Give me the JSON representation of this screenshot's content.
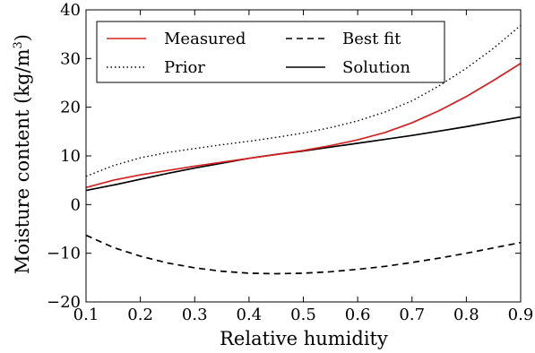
{
  "chart_data": {
    "type": "line",
    "title": "",
    "xlabel": "Relative humidity",
    "ylabel": {
      "main": "Moisture content (kg/m",
      "sup": "3",
      "close": ")"
    },
    "xlim": [
      0.1,
      0.9
    ],
    "ylim": [
      -20,
      40
    ],
    "xticks": [
      0.1,
      0.2,
      0.3,
      0.4,
      0.5,
      0.6,
      0.7,
      0.8,
      0.9
    ],
    "xtick_labels": [
      "0.1",
      "0.2",
      "0.3",
      "0.4",
      "0.5",
      "0.6",
      "0.7",
      "0.8",
      "0.9"
    ],
    "yticks": [
      -20,
      -10,
      0,
      10,
      20,
      30,
      40
    ],
    "ytick_labels": [
      "−20",
      "−10",
      "0",
      "10",
      "20",
      "30",
      "40"
    ],
    "grid": false,
    "legend_position": "top-left",
    "x": [
      0.1,
      0.15,
      0.2,
      0.25,
      0.3,
      0.35,
      0.4,
      0.45,
      0.5,
      0.55,
      0.6,
      0.65,
      0.7,
      0.75,
      0.8,
      0.85,
      0.9
    ],
    "series": [
      {
        "name": "Measured",
        "color": "#d62020",
        "dash": "solid",
        "values": [
          3.5,
          5.0,
          6.1,
          7.0,
          7.9,
          8.7,
          9.5,
          10.3,
          11.1,
          12.1,
          13.3,
          14.8,
          16.8,
          19.3,
          22.2,
          25.5,
          29.0
        ]
      },
      {
        "name": "Best fit",
        "color": "#000000",
        "dash": "dashed",
        "values": [
          -6.3,
          -8.8,
          -10.6,
          -12.0,
          -13.0,
          -13.7,
          -14.1,
          -14.2,
          -14.1,
          -13.8,
          -13.3,
          -12.7,
          -11.9,
          -11.0,
          -10.0,
          -8.9,
          -7.8
        ]
      },
      {
        "name": "Prior",
        "color": "#000000",
        "dash": "dotted",
        "values": [
          5.8,
          8.0,
          9.6,
          10.7,
          11.5,
          12.3,
          13.0,
          13.8,
          14.7,
          15.8,
          17.2,
          19.0,
          21.3,
          24.4,
          28.0,
          32.1,
          36.8
        ]
      },
      {
        "name": "Solution",
        "color": "#000000",
        "dash": "solid",
        "values": [
          2.9,
          4.0,
          5.2,
          6.4,
          7.5,
          8.5,
          9.5,
          10.3,
          11.0,
          11.8,
          12.6,
          13.4,
          14.2,
          15.1,
          16.0,
          17.0,
          18.0
        ]
      }
    ],
    "legend": {
      "measured": "Measured",
      "best_fit": "Best fit",
      "prior": "Prior",
      "solution": "Solution"
    }
  }
}
